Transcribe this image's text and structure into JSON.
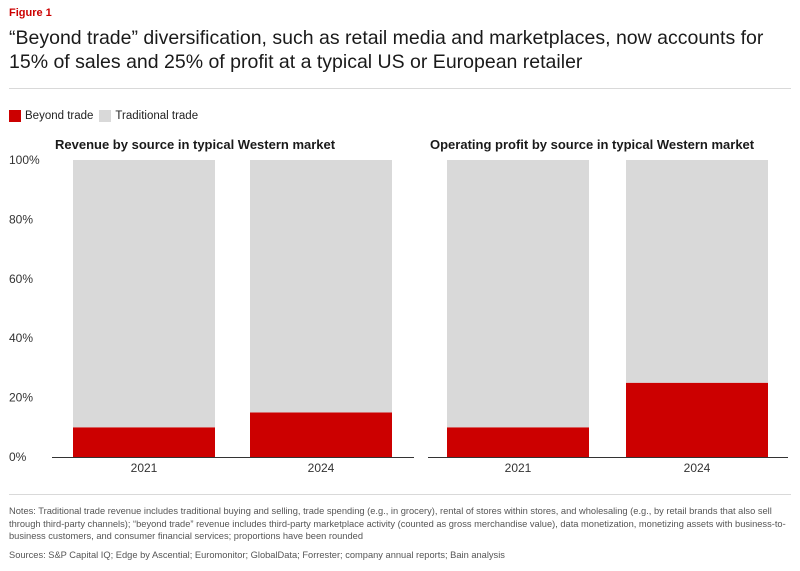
{
  "figure_label": "Figure 1",
  "title": "“Beyond trade” diversification, such as retail media and marketplaces, now accounts for 15% of sales and 25% of profit at a typical US or European retailer",
  "colors": {
    "beyond": "#cc0000",
    "traditional": "#d9d9d9",
    "axis": "#333333"
  },
  "legend": [
    {
      "name": "Beyond trade",
      "color": "#cc0000"
    },
    {
      "name": "Traditional trade",
      "color": "#d9d9d9"
    }
  ],
  "chart_data": [
    {
      "type": "bar",
      "stacked": true,
      "title": "Revenue by source in typical Western market",
      "categories": [
        "2021",
        "2024"
      ],
      "series": [
        {
          "name": "Beyond trade",
          "values": [
            10,
            15
          ]
        },
        {
          "name": "Traditional trade",
          "values": [
            90,
            85
          ]
        }
      ],
      "ylim": [
        0,
        100
      ],
      "yticks": [
        "0%",
        "20%",
        "40%",
        "60%",
        "80%",
        "100%"
      ],
      "legend": "top-left"
    },
    {
      "type": "bar",
      "stacked": true,
      "title": "Operating profit by source in typical Western market",
      "categories": [
        "2021",
        "2024"
      ],
      "series": [
        {
          "name": "Beyond trade",
          "values": [
            10,
            25
          ]
        },
        {
          "name": "Traditional trade",
          "values": [
            90,
            75
          ]
        }
      ],
      "ylim": [
        0,
        100
      ],
      "legend": "top-left"
    }
  ],
  "notes": "Notes: Traditional trade revenue includes traditional buying and selling, trade spending (e.g., in grocery), rental of stores within stores, and wholesaling (e.g., by retail brands that also sell through third-party channels); “beyond trade” revenue includes third-party marketplace activity (counted as gross merchandise value), data monetization, monetizing assets with business-to-business customers, and consumer financial services; proportions have been rounded",
  "sources": "Sources: S&P Capital IQ; Edge by Ascential; Euromonitor; GlobalData; Forrester; company annual reports; Bain analysis"
}
